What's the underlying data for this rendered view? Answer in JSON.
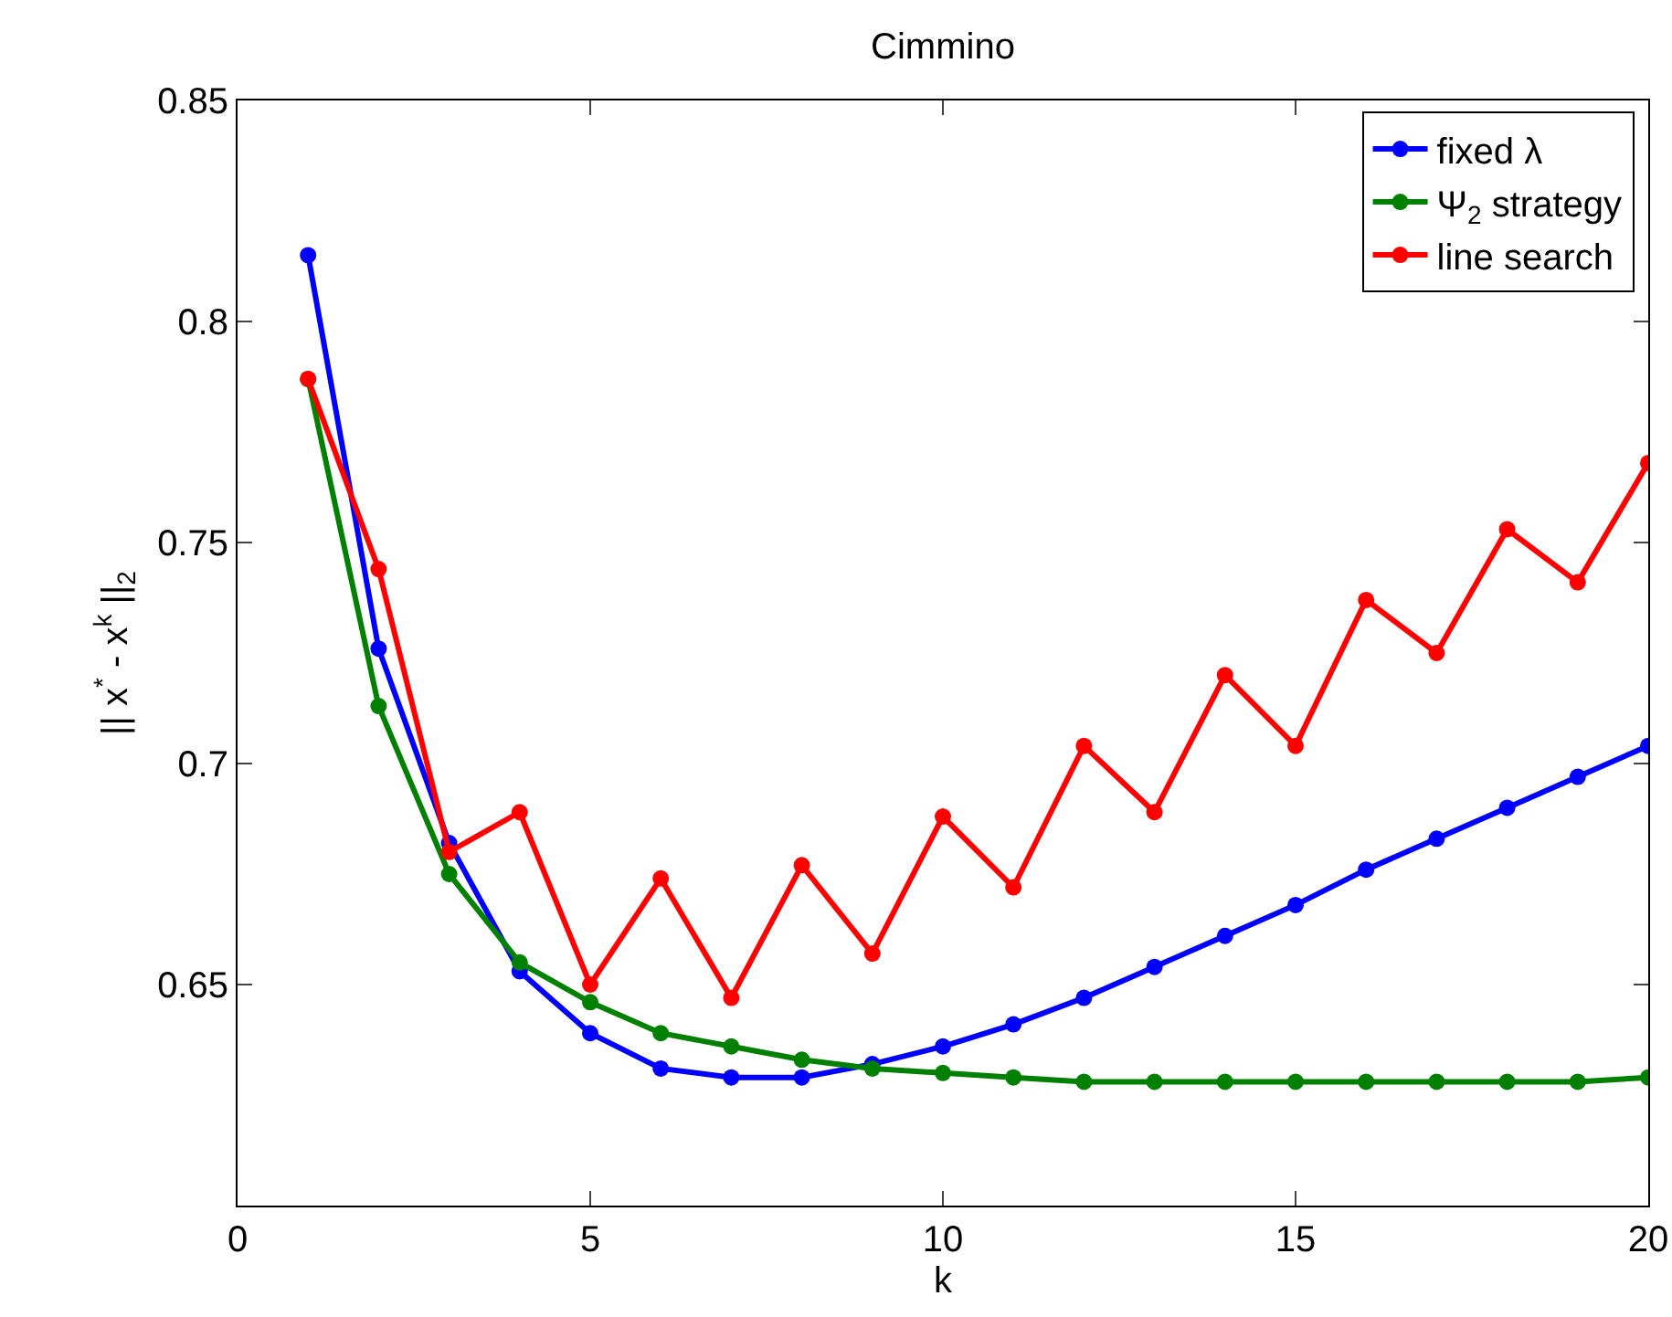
{
  "chart_data": {
    "type": "line",
    "title": "Cimmino",
    "xlabel": "k",
    "ylabel": "|| x$^{*}$ - x$^{k}$ ||$_{2}$",
    "x": [
      1,
      2,
      3,
      4,
      5,
      6,
      7,
      8,
      9,
      10,
      11,
      12,
      13,
      14,
      15,
      16,
      17,
      18,
      19,
      20
    ],
    "xlim": [
      0,
      20
    ],
    "xticks": [
      0,
      5,
      10,
      15,
      20
    ],
    "ylim": [
      0.6,
      0.85
    ],
    "yticks": [
      0.65,
      0.7,
      0.75,
      0.8,
      0.85
    ],
    "grid": false,
    "legend": "top right",
    "marker": "circle",
    "line_style": "solid",
    "series": [
      {
        "name": "fixed λ",
        "color": "#0000ff",
        "values": [
          0.815,
          0.726,
          0.682,
          0.653,
          0.639,
          0.631,
          0.629,
          0.629,
          0.632,
          0.636,
          0.641,
          0.647,
          0.654,
          0.661,
          0.668,
          0.676,
          0.683,
          0.69,
          0.697,
          0.704
        ]
      },
      {
        "name": "Ψ$_{2}$ strategy",
        "color": "#008000",
        "values": [
          0.787,
          0.713,
          0.675,
          0.655,
          0.646,
          0.639,
          0.636,
          0.633,
          0.631,
          0.63,
          0.629,
          0.628,
          0.628,
          0.628,
          0.628,
          0.628,
          0.628,
          0.628,
          0.628,
          0.629
        ]
      },
      {
        "name": "line search",
        "color": "#ff0000",
        "values": [
          0.787,
          0.744,
          0.68,
          0.689,
          0.65,
          0.674,
          0.647,
          0.677,
          0.657,
          0.688,
          0.672,
          0.704,
          0.689,
          0.72,
          0.704,
          0.737,
          0.725,
          0.753,
          0.741,
          0.768
        ]
      }
    ]
  }
}
